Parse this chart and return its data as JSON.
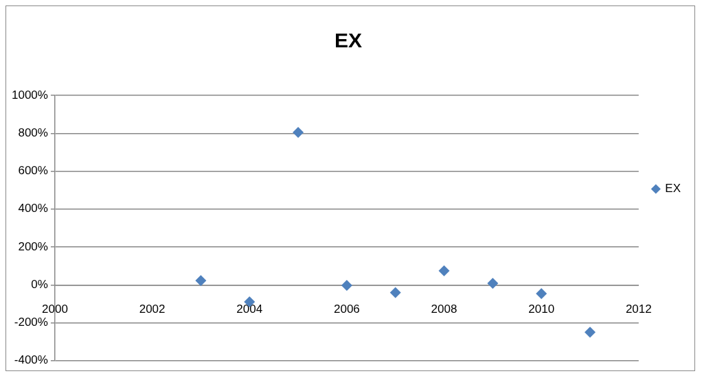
{
  "chart_data": {
    "type": "scatter",
    "title": "EX",
    "x": [
      2003,
      2004,
      2005,
      2006,
      2007,
      2008,
      2009,
      2010,
      2011
    ],
    "series": [
      {
        "name": "EX",
        "color": "#4f81bd",
        "values": [
          23,
          -89,
          805,
          -3,
          -41,
          74,
          8,
          -46,
          -250
        ]
      }
    ],
    "xlim": [
      2000,
      2012
    ],
    "xticks": [
      2000,
      2002,
      2004,
      2006,
      2008,
      2010,
      2012
    ],
    "ylim": [
      -400,
      1000
    ],
    "yticks": [
      {
        "value": -400,
        "label": "-400%"
      },
      {
        "value": -200,
        "label": "-200%"
      },
      {
        "value": 0,
        "label": "0%"
      },
      {
        "value": 200,
        "label": "200%"
      },
      {
        "value": 400,
        "label": "400%"
      },
      {
        "value": 600,
        "label": "600%"
      },
      {
        "value": 800,
        "label": "800%"
      },
      {
        "value": 1000,
        "label": "1000%"
      }
    ],
    "grid": "y",
    "legend": "right",
    "marker": "diamond"
  }
}
